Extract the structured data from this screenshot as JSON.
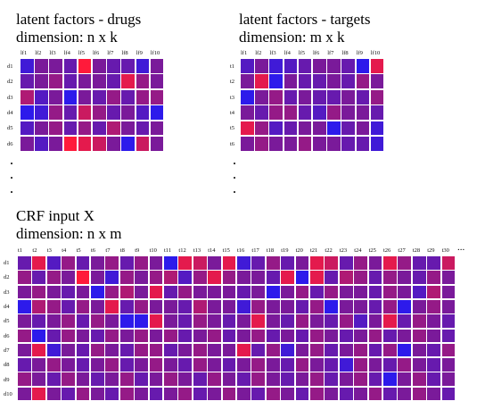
{
  "drugs_panel": {
    "title_line1": "latent factors - drugs",
    "title_line2": "dimension: n x k",
    "col_labels": [
      "lf1",
      "lf2",
      "lf3",
      "lf4",
      "lf5",
      "lf6",
      "lf7",
      "lf8",
      "lf9",
      "lf10"
    ],
    "row_labels": [
      "d1",
      "d2",
      "d3",
      "d4",
      "d5",
      "d6"
    ],
    "ellipsis_rows": 3,
    "grid": [
      [
        0.2,
        0.5,
        0.5,
        0.4,
        1.0,
        0.5,
        0.4,
        0.4,
        0.2,
        0.5
      ],
      [
        0.4,
        0.5,
        0.6,
        0.4,
        0.5,
        0.5,
        0.4,
        0.9,
        0.6,
        0.5
      ],
      [
        0.7,
        0.3,
        0.5,
        0.1,
        0.5,
        0.4,
        0.6,
        0.4,
        0.6,
        0.6
      ],
      [
        0.1,
        0.2,
        0.6,
        0.4,
        0.8,
        0.6,
        0.4,
        0.5,
        0.3,
        0.1
      ],
      [
        0.3,
        0.5,
        0.6,
        0.4,
        0.6,
        0.4,
        0.7,
        0.5,
        0.4,
        0.5
      ],
      [
        0.5,
        0.3,
        0.5,
        1.0,
        0.9,
        0.8,
        0.5,
        0.1,
        0.8,
        0.5
      ]
    ]
  },
  "targets_panel": {
    "title_line1": "latent factors - targets",
    "title_line2": "dimension: m x k",
    "col_labels": [
      "lf1",
      "lf2",
      "lf3",
      "lf4",
      "lf5",
      "lf6",
      "lf7",
      "lf8",
      "lf9",
      "lf10"
    ],
    "row_labels": [
      "t1",
      "t2",
      "t3",
      "t4",
      "t5",
      "t6"
    ],
    "ellipsis_rows": 3,
    "grid": [
      [
        0.3,
        0.5,
        0.2,
        0.3,
        0.4,
        0.5,
        0.5,
        0.4,
        0.1,
        0.9
      ],
      [
        0.5,
        0.9,
        0.1,
        0.5,
        0.4,
        0.4,
        0.5,
        0.4,
        0.6,
        0.5
      ],
      [
        0.1,
        0.5,
        0.6,
        0.4,
        0.5,
        0.4,
        0.4,
        0.5,
        0.4,
        0.6
      ],
      [
        0.5,
        0.4,
        0.6,
        0.6,
        0.4,
        0.3,
        0.6,
        0.5,
        0.5,
        0.4
      ],
      [
        0.9,
        0.6,
        0.3,
        0.4,
        0.5,
        0.5,
        0.1,
        0.4,
        0.5,
        0.2
      ],
      [
        0.5,
        0.6,
        0.5,
        0.5,
        0.6,
        0.5,
        0.5,
        0.4,
        0.4,
        0.2
      ]
    ]
  },
  "crf_panel": {
    "title_line1": "CRF input X",
    "title_line2": "dimension: n x m",
    "col_labels": [
      "t1",
      "t2",
      "t3",
      "t4",
      "t5",
      "t6",
      "t7",
      "t8",
      "t9",
      "t10",
      "t11",
      "t12",
      "t13",
      "t14",
      "t15",
      "t16",
      "t17",
      "t18",
      "t19",
      "t20",
      "t21",
      "t22",
      "t23",
      "t24",
      "t25",
      "t26",
      "t27",
      "t28",
      "t29",
      "t30"
    ],
    "col_ellipsis": "...",
    "row_labels": [
      "d1",
      "d2",
      "d3",
      "d4",
      "d5",
      "d6",
      "d7",
      "d8",
      "d9",
      "d10"
    ],
    "grid": [
      [
        0.4,
        0.9,
        0.3,
        0.6,
        0.4,
        0.5,
        0.6,
        0.4,
        0.6,
        0.5,
        0.1,
        0.9,
        0.8,
        0.5,
        0.9,
        0.2,
        0.4,
        0.6,
        0.4,
        0.5,
        0.9,
        0.8,
        0.4,
        0.6,
        0.5,
        0.9,
        0.6,
        0.4,
        0.4,
        0.8
      ],
      [
        0.6,
        0.4,
        0.6,
        0.5,
        1.0,
        0.5,
        0.2,
        0.6,
        0.5,
        0.6,
        0.7,
        0.3,
        0.6,
        0.9,
        0.6,
        0.5,
        0.5,
        0.4,
        0.9,
        0.1,
        0.9,
        0.4,
        0.7,
        0.6,
        0.4,
        0.6,
        0.5,
        0.4,
        0.6,
        0.5
      ],
      [
        0.5,
        0.6,
        0.5,
        0.4,
        0.5,
        0.1,
        0.6,
        0.7,
        0.5,
        0.9,
        0.4,
        0.6,
        0.5,
        0.5,
        0.5,
        0.4,
        0.5,
        0.1,
        0.5,
        0.6,
        0.4,
        0.6,
        0.5,
        0.5,
        0.4,
        0.6,
        0.5,
        0.3,
        0.7,
        0.5
      ],
      [
        0.1,
        0.7,
        0.6,
        0.4,
        0.6,
        0.5,
        0.9,
        0.4,
        0.6,
        0.5,
        0.5,
        0.4,
        0.7,
        0.5,
        0.5,
        0.2,
        0.6,
        0.5,
        0.5,
        0.4,
        0.6,
        0.1,
        0.5,
        0.5,
        0.4,
        0.6,
        0.1,
        0.5,
        0.6,
        0.5
      ],
      [
        0.5,
        0.4,
        0.5,
        0.6,
        0.4,
        0.6,
        0.5,
        0.1,
        0.1,
        0.9,
        0.5,
        0.4,
        0.6,
        0.5,
        0.4,
        0.5,
        0.9,
        0.5,
        0.4,
        0.6,
        0.5,
        0.4,
        0.6,
        0.3,
        0.5,
        0.9,
        0.4,
        0.6,
        0.5,
        0.4
      ],
      [
        0.6,
        0.1,
        0.4,
        0.6,
        0.5,
        0.4,
        0.6,
        0.5,
        0.6,
        0.5,
        0.6,
        0.4,
        0.5,
        0.6,
        0.4,
        0.5,
        0.6,
        0.4,
        0.5,
        0.4,
        0.6,
        0.5,
        0.4,
        0.5,
        0.6,
        0.4,
        0.5,
        0.6,
        0.5,
        0.4
      ],
      [
        0.5,
        0.9,
        0.2,
        0.5,
        0.4,
        0.6,
        0.5,
        0.4,
        0.6,
        0.6,
        0.4,
        0.5,
        0.6,
        0.5,
        0.5,
        0.9,
        0.4,
        0.6,
        0.2,
        0.5,
        0.6,
        0.4,
        0.5,
        0.6,
        0.4,
        0.6,
        0.1,
        0.5,
        0.4,
        0.6
      ],
      [
        0.4,
        0.5,
        0.6,
        0.5,
        0.4,
        0.5,
        0.6,
        0.4,
        0.5,
        0.6,
        0.5,
        0.4,
        0.6,
        0.5,
        0.4,
        0.5,
        0.6,
        0.5,
        0.4,
        0.6,
        0.5,
        0.4,
        0.2,
        0.6,
        0.5,
        0.4,
        0.6,
        0.5,
        0.4,
        0.5
      ],
      [
        0.6,
        0.5,
        0.4,
        0.6,
        0.5,
        0.4,
        0.5,
        0.6,
        0.4,
        0.5,
        0.6,
        0.5,
        0.4,
        0.6,
        0.5,
        0.4,
        0.6,
        0.5,
        0.4,
        0.5,
        0.6,
        0.4,
        0.5,
        0.6,
        0.4,
        0.1,
        0.5,
        0.6,
        0.4,
        0.5
      ],
      [
        0.5,
        0.9,
        0.5,
        0.4,
        0.6,
        0.5,
        0.4,
        0.6,
        0.5,
        0.4,
        0.5,
        0.6,
        0.4,
        0.5,
        0.6,
        0.5,
        0.4,
        0.6,
        0.5,
        0.4,
        0.6,
        0.5,
        0.4,
        0.5,
        0.6,
        0.4,
        0.5,
        0.6,
        0.5,
        0.4
      ]
    ]
  },
  "colors": {
    "low": "#1a1aff",
    "mid": "#7a1a9a",
    "high": "#ff1a3a",
    "cell_border": "#ffffff"
  }
}
